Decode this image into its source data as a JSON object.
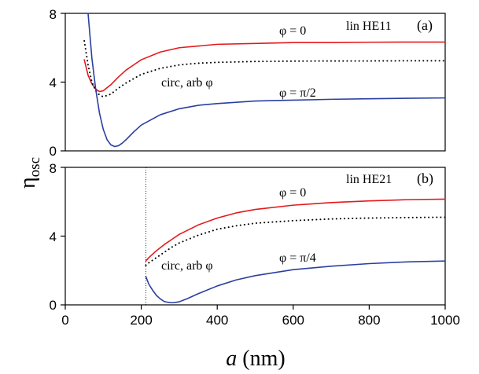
{
  "chart_data": [
    {
      "type": "line",
      "panel_label": "(a)",
      "mode_label": "lin HE11",
      "xlim": [
        0,
        1000
      ],
      "ylim": [
        0,
        8
      ],
      "yticks": [
        0,
        4,
        8
      ],
      "series": [
        {
          "name": "φ = 0",
          "color": "#e31a1c",
          "style": "solid",
          "x": [
            50,
            60,
            70,
            80,
            90,
            100,
            120,
            140,
            160,
            180,
            200,
            250,
            300,
            350,
            400,
            500,
            600,
            700,
            800,
            900,
            1000
          ],
          "y": [
            5.3,
            4.4,
            3.9,
            3.6,
            3.45,
            3.5,
            3.85,
            4.3,
            4.7,
            5.0,
            5.3,
            5.75,
            6.0,
            6.1,
            6.2,
            6.25,
            6.3,
            6.3,
            6.32,
            6.33,
            6.33
          ]
        },
        {
          "name": "circ, arb φ",
          "color": "#000000",
          "style": "dotted",
          "x": [
            50,
            60,
            70,
            80,
            90,
            100,
            120,
            140,
            160,
            180,
            200,
            250,
            300,
            350,
            400,
            500,
            600,
            700,
            800,
            900,
            1000
          ],
          "y": [
            6.4,
            5.0,
            4.0,
            3.5,
            3.25,
            3.15,
            3.3,
            3.65,
            3.95,
            4.2,
            4.45,
            4.8,
            5.0,
            5.1,
            5.15,
            5.2,
            5.22,
            5.23,
            5.23,
            5.24,
            5.24
          ]
        },
        {
          "name": "φ = π/2",
          "color": "#2b3fa0",
          "style": "solid",
          "x": [
            60,
            70,
            80,
            90,
            100,
            110,
            120,
            130,
            140,
            150,
            160,
            180,
            200,
            250,
            300,
            350,
            400,
            500,
            600,
            700,
            800,
            900,
            1000
          ],
          "y": [
            8.0,
            5.4,
            3.6,
            2.2,
            1.25,
            0.65,
            0.35,
            0.25,
            0.3,
            0.45,
            0.65,
            1.1,
            1.5,
            2.1,
            2.45,
            2.65,
            2.75,
            2.9,
            2.95,
            3.0,
            3.03,
            3.06,
            3.08
          ]
        }
      ]
    },
    {
      "type": "line",
      "panel_label": "(b)",
      "mode_label": "lin HE21",
      "xlim": [
        0,
        1000
      ],
      "ylim": [
        0,
        8
      ],
      "yticks": [
        0,
        4,
        8
      ],
      "xticks": [
        0,
        200,
        400,
        600,
        800,
        1000
      ],
      "cutoff_x": 212,
      "series": [
        {
          "name": "φ = 0",
          "color": "#e31a1c",
          "style": "solid",
          "x": [
            212,
            220,
            240,
            260,
            280,
            300,
            350,
            400,
            450,
            500,
            600,
            700,
            800,
            900,
            1000
          ],
          "y": [
            2.55,
            2.75,
            3.15,
            3.5,
            3.8,
            4.1,
            4.65,
            5.05,
            5.35,
            5.55,
            5.8,
            5.95,
            6.05,
            6.12,
            6.15
          ]
        },
        {
          "name": "circ, arb φ",
          "color": "#000000",
          "style": "dotted",
          "x": [
            212,
            220,
            240,
            260,
            280,
            300,
            350,
            400,
            450,
            500,
            600,
            700,
            800,
            900,
            1000
          ],
          "y": [
            2.3,
            2.45,
            2.75,
            3.05,
            3.35,
            3.6,
            4.05,
            4.4,
            4.6,
            4.75,
            4.9,
            5.0,
            5.05,
            5.08,
            5.1
          ]
        },
        {
          "name": "φ = π/4",
          "color": "#2b3fa0",
          "style": "solid",
          "x": [
            212,
            220,
            230,
            240,
            250,
            260,
            270,
            280,
            290,
            300,
            320,
            350,
            400,
            450,
            500,
            600,
            700,
            800,
            900,
            1000
          ],
          "y": [
            1.65,
            1.2,
            0.85,
            0.55,
            0.35,
            0.2,
            0.15,
            0.12,
            0.14,
            0.18,
            0.35,
            0.65,
            1.1,
            1.45,
            1.7,
            2.05,
            2.25,
            2.4,
            2.5,
            2.55
          ]
        }
      ],
      "annotations": [
        "φ = 0",
        "circ, arb φ",
        "φ = π/4"
      ]
    }
  ],
  "annotations_a": [
    "φ = 0",
    "circ, arb φ",
    "φ = π/2"
  ],
  "xlabel_italic": "a",
  "xlabel_unit": " (nm)",
  "ylabel_main": "η",
  "ylabel_sub": "osc",
  "tick_labels_y": [
    "0",
    "4",
    "8"
  ],
  "tick_labels_x": [
    "0",
    "200",
    "400",
    "600",
    "800",
    "1000"
  ]
}
